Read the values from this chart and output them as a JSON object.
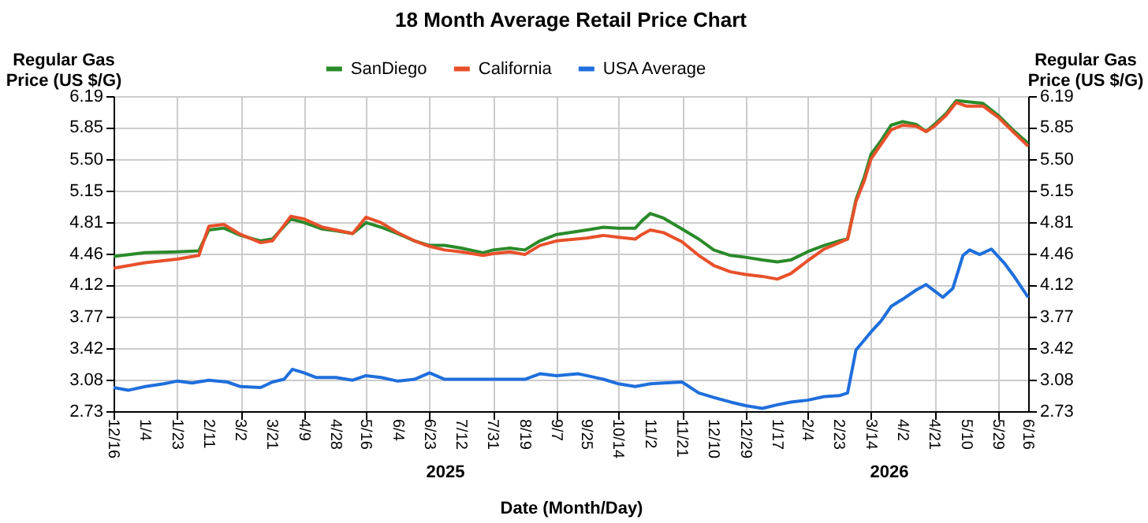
{
  "chart_data": {
    "type": "line",
    "title": "18 Month Average Retail Price Chart",
    "xlabel": "Date (Month/Day)",
    "ylabel": "Regular Gas Price (US $/G)",
    "y2label": "Regular Gas Price (US $/G)",
    "x": [
      "2024-12-16",
      "2025-01-04",
      "2025-01-23",
      "2025-02-05",
      "2025-02-11",
      "2025-02-20",
      "2025-03-02",
      "2025-03-14",
      "2025-03-21",
      "2025-04-01",
      "2025-04-09",
      "2025-04-20",
      "2025-04-28",
      "2025-05-08",
      "2025-05-16",
      "2025-05-25",
      "2025-06-04",
      "2025-06-14",
      "2025-06-23",
      "2025-07-02",
      "2025-07-12",
      "2025-07-25",
      "2025-07-31",
      "2025-08-10",
      "2025-08-19",
      "2025-08-28",
      "2025-09-07",
      "2025-09-25",
      "2025-10-05",
      "2025-10-14",
      "2025-10-24",
      "2025-10-28",
      "2025-11-02",
      "2025-11-10",
      "2025-11-21",
      "2025-12-01",
      "2025-12-10",
      "2025-12-20",
      "2025-12-29",
      "2026-01-08",
      "2026-01-17",
      "2026-01-25",
      "2026-02-04",
      "2026-02-14",
      "2026-02-23",
      "2026-02-28",
      "2026-03-05",
      "2026-03-10",
      "2026-03-14",
      "2026-03-20",
      "2026-03-26",
      "2026-04-02",
      "2026-04-10",
      "2026-04-16",
      "2026-04-21",
      "2026-04-28",
      "2026-05-04",
      "2026-05-10",
      "2026-05-20",
      "2026-05-29",
      "2026-06-08",
      "2026-06-16"
    ],
    "series": [
      {
        "name": "SanDiego",
        "color": "#2a8a2a",
        "values": [
          4.43,
          4.47,
          4.48,
          4.49,
          4.72,
          4.74,
          4.66,
          4.6,
          4.62,
          4.84,
          4.8,
          4.73,
          4.71,
          4.68,
          4.8,
          4.75,
          4.68,
          4.6,
          4.55,
          4.55,
          4.52,
          4.47,
          4.5,
          4.52,
          4.5,
          4.6,
          4.67,
          4.72,
          4.75,
          4.74,
          4.74,
          4.82,
          4.9,
          4.85,
          4.73,
          4.62,
          4.5,
          4.44,
          4.42,
          4.39,
          4.37,
          4.39,
          4.48,
          4.55,
          4.6,
          4.62,
          5.05,
          5.3,
          5.55,
          5.7,
          5.87,
          5.91,
          5.88,
          5.8,
          5.88,
          6.0,
          6.14,
          6.13,
          6.11,
          5.98,
          5.8,
          5.67
        ]
      },
      {
        "name": "California",
        "color": "#e8502a",
        "values": [
          4.3,
          4.36,
          4.4,
          4.44,
          4.76,
          4.78,
          4.67,
          4.58,
          4.6,
          4.87,
          4.84,
          4.75,
          4.72,
          4.68,
          4.86,
          4.8,
          4.69,
          4.6,
          4.54,
          4.5,
          4.48,
          4.44,
          4.46,
          4.48,
          4.45,
          4.55,
          4.6,
          4.63,
          4.66,
          4.64,
          4.62,
          4.67,
          4.72,
          4.69,
          4.59,
          4.44,
          4.33,
          4.26,
          4.23,
          4.21,
          4.18,
          4.24,
          4.38,
          4.51,
          4.58,
          4.62,
          5.03,
          5.26,
          5.5,
          5.66,
          5.82,
          5.87,
          5.86,
          5.8,
          5.86,
          5.98,
          6.12,
          6.08,
          6.08,
          5.96,
          5.78,
          5.64
        ]
      },
      {
        "name": "USA Average",
        "color": "#1f6fdc",
        "x": [
          "2024-12-16",
          "2024-12-25",
          "2025-01-04",
          "2025-01-15",
          "2025-01-23",
          "2025-02-01",
          "2025-02-11",
          "2025-02-22",
          "2025-03-02",
          "2025-03-14",
          "2025-03-21",
          "2025-03-28",
          "2025-04-02",
          "2025-04-09",
          "2025-04-16",
          "2025-04-28",
          "2025-05-08",
          "2025-05-16",
          "2025-05-25",
          "2025-06-04",
          "2025-06-14",
          "2025-06-23",
          "2025-07-02",
          "2025-07-12",
          "2025-07-31",
          "2025-08-19",
          "2025-08-28",
          "2025-09-07",
          "2025-09-20",
          "2025-09-25",
          "2025-10-05",
          "2025-10-14",
          "2025-10-24",
          "2025-11-02",
          "2025-11-10",
          "2025-11-21",
          "2025-12-01",
          "2025-12-10",
          "2025-12-20",
          "2025-12-29",
          "2026-01-08",
          "2026-01-17",
          "2026-01-25",
          "2026-02-04",
          "2026-02-14",
          "2026-02-23",
          "2026-02-28",
          "2026-03-05",
          "2026-03-14",
          "2026-03-20",
          "2026-03-26",
          "2026-04-02",
          "2026-04-10",
          "2026-04-16",
          "2026-04-21",
          "2026-04-26",
          "2026-05-02",
          "2026-05-08",
          "2026-05-12",
          "2026-05-18",
          "2026-05-25",
          "2026-06-02",
          "2026-06-08",
          "2026-06-16"
        ],
        "values": [
          2.99,
          2.96,
          3.0,
          3.03,
          3.06,
          3.04,
          3.07,
          3.05,
          3.0,
          2.99,
          3.05,
          3.08,
          3.19,
          3.15,
          3.1,
          3.1,
          3.07,
          3.12,
          3.1,
          3.06,
          3.08,
          3.15,
          3.08,
          3.08,
          3.08,
          3.08,
          3.14,
          3.12,
          3.14,
          3.12,
          3.08,
          3.03,
          3.0,
          3.03,
          3.04,
          3.05,
          2.93,
          2.88,
          2.83,
          2.79,
          2.76,
          2.8,
          2.83,
          2.85,
          2.89,
          2.9,
          2.93,
          3.4,
          3.6,
          3.72,
          3.88,
          3.96,
          4.06,
          4.12,
          4.05,
          3.98,
          4.08,
          4.44,
          4.5,
          4.45,
          4.51,
          4.35,
          4.2,
          3.98
        ]
      }
    ],
    "xlim": [
      "2024-12-16",
      "2026-06-16"
    ],
    "xticks": [
      {
        "value": "2024-12-16",
        "label": "12/16"
      },
      {
        "value": "2025-01-04",
        "label": "1/4"
      },
      {
        "value": "2025-01-23",
        "label": "1/23"
      },
      {
        "value": "2025-02-11",
        "label": "2/11"
      },
      {
        "value": "2025-03-02",
        "label": "3/2"
      },
      {
        "value": "2025-03-21",
        "label": "3/21"
      },
      {
        "value": "2025-04-09",
        "label": "4/9"
      },
      {
        "value": "2025-04-28",
        "label": "4/28"
      },
      {
        "value": "2025-05-16",
        "label": "5/16"
      },
      {
        "value": "2025-06-04",
        "label": "6/4"
      },
      {
        "value": "2025-06-23",
        "label": "6/23"
      },
      {
        "value": "2025-07-12",
        "label": "7/12"
      },
      {
        "value": "2025-07-31",
        "label": "7/31"
      },
      {
        "value": "2025-08-19",
        "label": "8/19"
      },
      {
        "value": "2025-09-07",
        "label": "9/7"
      },
      {
        "value": "2025-09-25",
        "label": "9/25"
      },
      {
        "value": "2025-10-14",
        "label": "10/14"
      },
      {
        "value": "2025-11-02",
        "label": "11/2"
      },
      {
        "value": "2025-11-21",
        "label": "11/21"
      },
      {
        "value": "2025-12-10",
        "label": "12/10"
      },
      {
        "value": "2025-12-29",
        "label": "12/29"
      },
      {
        "value": "2026-01-17",
        "label": "1/17"
      },
      {
        "value": "2026-02-04",
        "label": "2/4"
      },
      {
        "value": "2026-02-23",
        "label": "2/23"
      },
      {
        "value": "2026-03-14",
        "label": "3/14"
      },
      {
        "value": "2026-04-02",
        "label": "4/2"
      },
      {
        "value": "2026-04-21",
        "label": "4/21"
      },
      {
        "value": "2026-05-10",
        "label": "5/10"
      },
      {
        "value": "2026-05-29",
        "label": "5/29"
      },
      {
        "value": "2026-06-16",
        "label": "6/16"
      }
    ],
    "ylim": [
      2.73,
      6.19
    ],
    "yticks": [
      2.73,
      3.08,
      3.42,
      3.77,
      4.12,
      4.46,
      4.81,
      5.15,
      {
        "value": 5.5,
        "label": "5.50"
      },
      5.85,
      6.19
    ],
    "y2lim": [
      2.73,
      6.19
    ],
    "y2ticks": [
      2.73,
      3.08,
      3.42,
      3.77,
      4.12,
      4.46,
      4.81,
      5.15,
      {
        "value": 5.5,
        "label": "5.50"
      },
      5.85,
      6.19
    ],
    "annotations": [
      "2025",
      "2026"
    ],
    "grid": true,
    "legend": "top",
    "marker": "none",
    "line_style": "solid"
  }
}
